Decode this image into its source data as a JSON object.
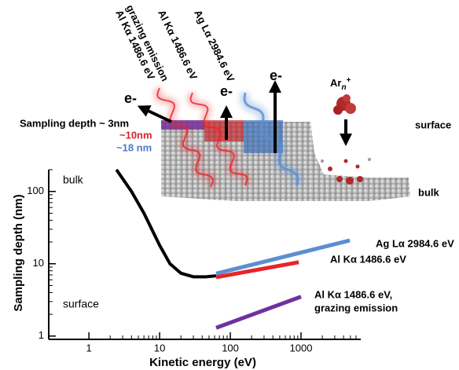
{
  "chart_data": {
    "type": "line",
    "xlabel": "Kinetic energy (eV)",
    "ylabel": "Sampling depth (nm)",
    "log_x": true,
    "log_y": true,
    "xlim": [
      0.27,
      7000
    ],
    "ylim": [
      0.9,
      200
    ],
    "xticks": [
      1,
      10,
      100,
      1000
    ],
    "yticks": [
      1,
      10,
      100
    ],
    "xminorticks": [
      2,
      3,
      4,
      5,
      6,
      7,
      8,
      9,
      20,
      30,
      40,
      50,
      60,
      70,
      80,
      90,
      200,
      300,
      400,
      500,
      600,
      700,
      800,
      900,
      2000,
      3000,
      4000,
      5000,
      6000
    ],
    "yminorticks": [
      2,
      3,
      4,
      5,
      6,
      7,
      8,
      9,
      20,
      30,
      40,
      50,
      60,
      70,
      80,
      90,
      200
    ],
    "annotations": [
      "bulk",
      "surface"
    ],
    "series": [
      {
        "color": "#000000",
        "x": [
          2.45,
          4,
          6,
          10,
          14,
          20,
          30,
          45,
          63
        ],
        "values": [
          200,
          100,
          50,
          18,
          10,
          7.4,
          6.6,
          6.6,
          6.8
        ]
      },
      {
        "name": "Ag Lα  2984.6 eV",
        "color": "#5b8fd0",
        "x": [
          63,
          4900
        ],
        "values": [
          7.3,
          21
        ]
      },
      {
        "name": "Al Kα  1486.6 eV",
        "color": "#e8232a",
        "x": [
          63,
          930
        ],
        "values": [
          6.5,
          10.5
        ]
      },
      {
        "name": [
          "Al Kα  1486.6 eV,",
          "grazing emission"
        ],
        "color": "#7030a0",
        "x": [
          63,
          1000
        ],
        "values": [
          1.3,
          3.5
        ]
      }
    ]
  },
  "illustration": {
    "beams": [
      [
        "Al Kα   1486.6 eV",
        "grazing emission"
      ],
      [
        "Al Kα   1486.6 eV"
      ],
      [
        "Ag Lα   2984.6 eV"
      ]
    ],
    "electrons": [
      "e-",
      "e-",
      "e-"
    ],
    "ion": {
      "base": "Ar",
      "sub": "n",
      "sup": "+"
    },
    "sampling_depth": "Sampling depth  ~ 3nm",
    "depth_red": "~10nm",
    "depth_blue": "~18 nm",
    "surface": "surface",
    "bulk": "bulk"
  }
}
